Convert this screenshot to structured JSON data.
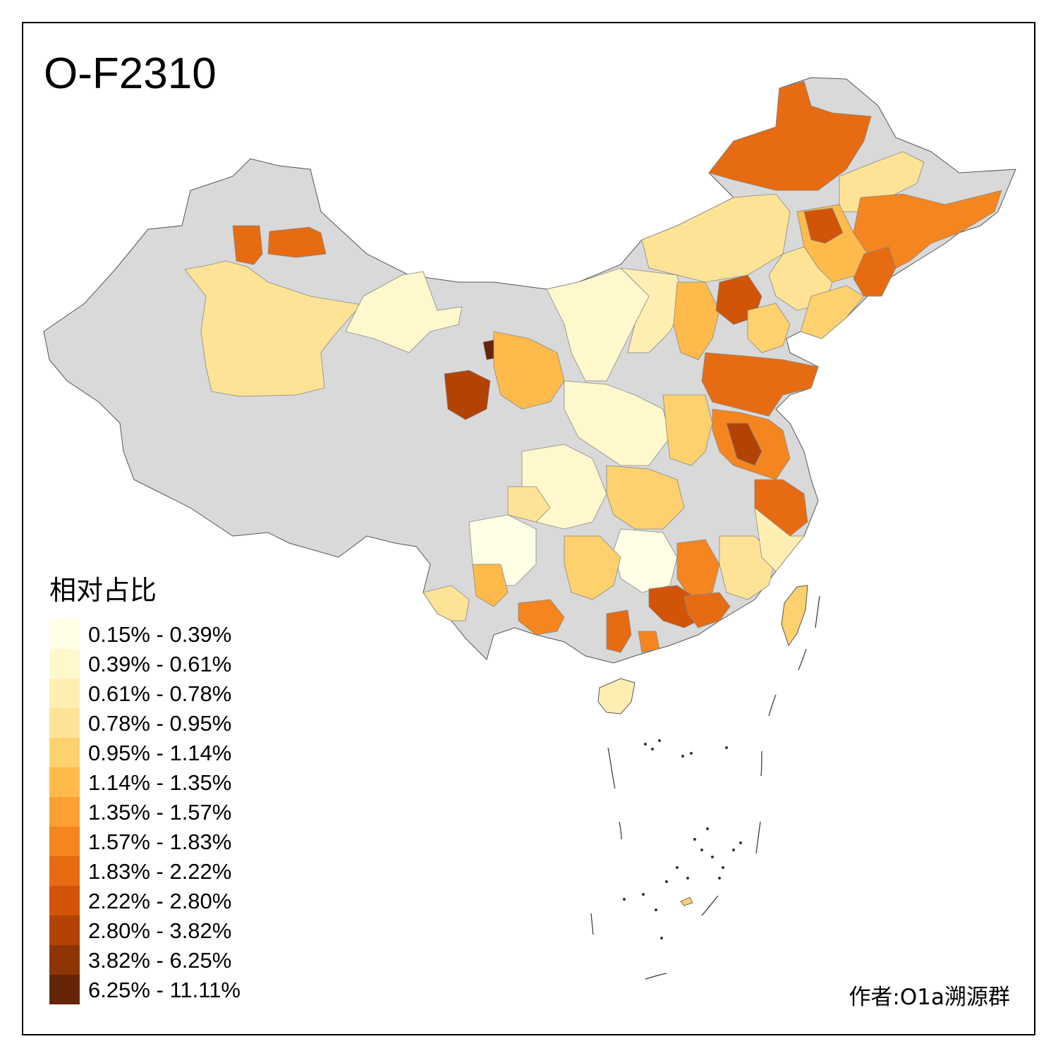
{
  "title": "O-F2310",
  "author": "作者:O1a溯源群",
  "legend": {
    "title": "相对占比",
    "no_data_color": "#d9d9d9",
    "items": [
      {
        "label": "0.15% - 0.39%",
        "color": "#ffffe5"
      },
      {
        "label": "0.39% - 0.61%",
        "color": "#fff8cc"
      },
      {
        "label": "0.61% - 0.78%",
        "color": "#ffeeb2"
      },
      {
        "label": "0.78% - 0.95%",
        "color": "#fee396"
      },
      {
        "label": "0.95% - 1.14%",
        "color": "#fed16f"
      },
      {
        "label": "1.14% - 1.35%",
        "color": "#febb4b"
      },
      {
        "label": "1.35% - 1.57%",
        "color": "#fd9f32"
      },
      {
        "label": "1.57% - 1.83%",
        "color": "#f5851f"
      },
      {
        "label": "1.83% - 2.22%",
        "color": "#e66b13"
      },
      {
        "label": "2.22% - 2.80%",
        "color": "#d15407"
      },
      {
        "label": "2.80% - 3.82%",
        "color": "#b24304"
      },
      {
        "label": "3.82% - 6.25%",
        "color": "#8f3504"
      },
      {
        "label": "6.25% - 11.11%",
        "color": "#662506"
      }
    ]
  }
}
